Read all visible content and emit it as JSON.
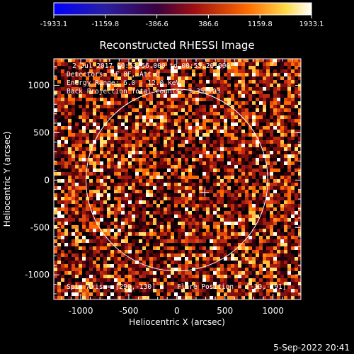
{
  "colorbar": {
    "ticks": [
      "-1933.1",
      "-1159.8",
      "-386.6",
      "386.6",
      "1159.8",
      "1933.1"
    ],
    "min": -1933.1,
    "max": 1933.1
  },
  "image": {
    "title": "Reconstructed RHESSI Image",
    "annotations": [
      "2-Jul-2017 00:53:56.000 to 00:55:20.000",
      "Detectors: 6F 8F, Att 0",
      "Energy Range: 6.0 - 12.0 keV",
      "Back Projection   Total counts: 3.35E+03"
    ],
    "spin_axis": "Spin Axis = [290,-130]",
    "flare_position": "Flare Position = [-30,-191]",
    "xlabel": "Heliocentric X (arcsec)",
    "ylabel": "Heliocentric Y (arcsec)",
    "xticks": [
      "-1000",
      "-500",
      "0",
      "500",
      "1000"
    ],
    "yticks": [
      "1000",
      "500",
      "0",
      "-500",
      "-1000"
    ],
    "xrange": [
      -1280,
      1290
    ],
    "yrange": [
      -1260,
      1280
    ],
    "disk_radius_arcsec": 945,
    "crosshair_arcsec": [
      290,
      -130
    ],
    "timestamp": "5-Sep-2022 20:41"
  },
  "colors": {
    "background": "#000000",
    "colormap": [
      "#0000ff",
      "#3a0040",
      "#a01010",
      "#ff6a00",
      "#ffff80",
      "#ffffff"
    ]
  }
}
